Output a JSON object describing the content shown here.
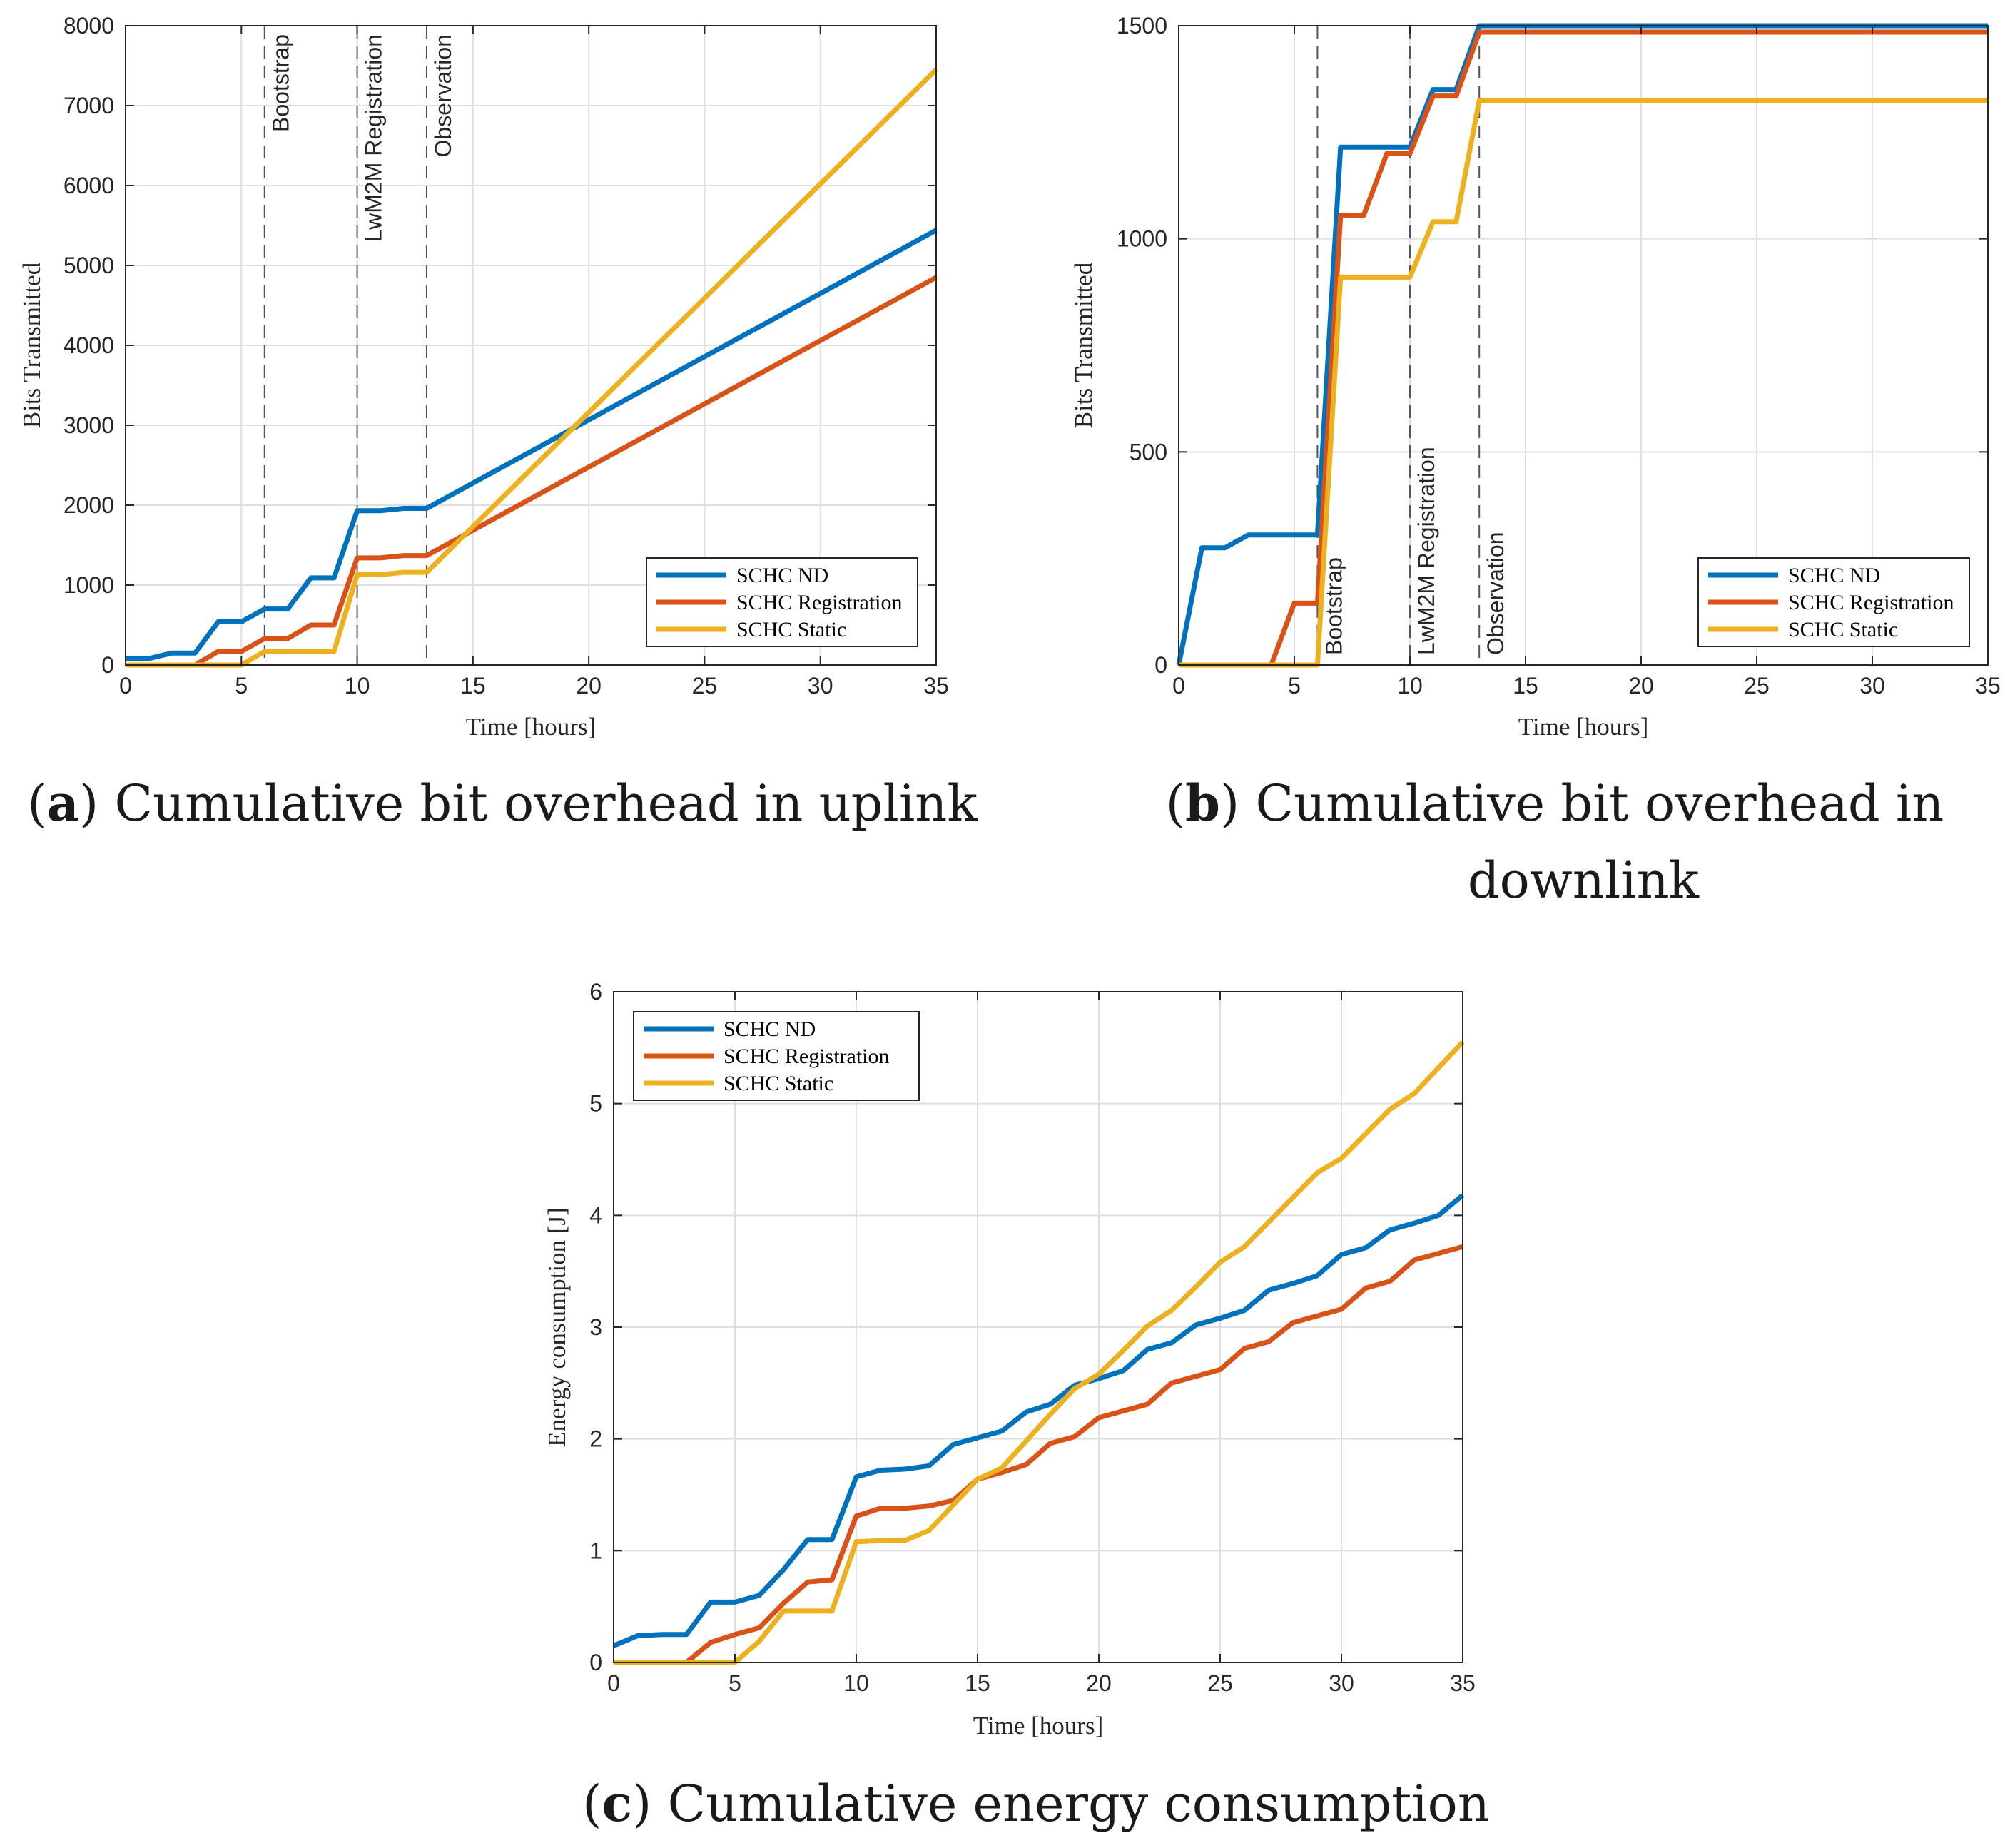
{
  "chart_data": [
    {
      "type": "line",
      "id": "a",
      "title": "",
      "caption": {
        "letter": "a",
        "text": "Cumulative bit overhead in uplink"
      },
      "xlabel": "Time [hours]",
      "ylabel": "Bits Transmitted",
      "xlim": [
        0,
        35
      ],
      "ylim": [
        0,
        8000
      ],
      "xticks": [
        0,
        5,
        10,
        15,
        20,
        25,
        30,
        35
      ],
      "yticks": [
        0,
        1000,
        2000,
        3000,
        4000,
        5000,
        6000,
        7000,
        8000
      ],
      "grid": true,
      "legend_position": "bottom-right",
      "phases": [
        {
          "x": 6,
          "label": "Bootstrap"
        },
        {
          "x": 10,
          "label": "LwM2M Registration"
        },
        {
          "x": 13,
          "label": "Observation"
        }
      ],
      "series": [
        {
          "name": "SCHC ND",
          "color": "#0072BD",
          "x": [
            0,
            1,
            2,
            3,
            4,
            5,
            6,
            7,
            8,
            9,
            10,
            11,
            12,
            13,
            35
          ],
          "y": [
            80,
            80,
            150,
            150,
            540,
            540,
            700,
            700,
            1090,
            1090,
            1930,
            1930,
            1960,
            1960,
            5440
          ]
        },
        {
          "name": "SCHC Registration",
          "color": "#D95319",
          "x": [
            0,
            3,
            4,
            5,
            6,
            7,
            8,
            9,
            10,
            11,
            12,
            13,
            35
          ],
          "y": [
            0,
            0,
            170,
            170,
            330,
            330,
            500,
            500,
            1340,
            1340,
            1370,
            1370,
            4850
          ]
        },
        {
          "name": "SCHC Static",
          "color": "#EDB120",
          "x": [
            0,
            5,
            6,
            7,
            8,
            9,
            10,
            11,
            12,
            13,
            35
          ],
          "y": [
            0,
            0,
            170,
            170,
            170,
            170,
            1130,
            1130,
            1160,
            1160,
            7450
          ]
        }
      ]
    },
    {
      "type": "line",
      "id": "b",
      "title": "",
      "caption": {
        "letter": "b",
        "text": "Cumulative bit overhead in",
        "text2": "downlink"
      },
      "xlabel": "Time [hours]",
      "ylabel": "Bits Transmitted",
      "xlim": [
        0,
        35
      ],
      "ylim": [
        0,
        1500
      ],
      "xticks": [
        0,
        5,
        10,
        15,
        20,
        25,
        30,
        35
      ],
      "yticks": [
        0,
        500,
        1000,
        1500
      ],
      "grid": true,
      "legend_position": "bottom-right",
      "phases": [
        {
          "x": 6,
          "label": "Bootstrap"
        },
        {
          "x": 10,
          "label": "LwM2M Registration"
        },
        {
          "x": 13,
          "label": "Observation"
        }
      ],
      "series": [
        {
          "name": "SCHC ND",
          "color": "#0072BD",
          "x": [
            0,
            1,
            2,
            3,
            6,
            7,
            10,
            11,
            12,
            13,
            35
          ],
          "y": [
            0,
            275,
            275,
            305,
            305,
            1215,
            1215,
            1350,
            1350,
            1500,
            1500
          ]
        },
        {
          "name": "SCHC Registration",
          "color": "#D95319",
          "x": [
            0,
            4,
            5,
            6,
            7,
            8,
            9,
            10,
            11,
            12,
            13,
            35
          ],
          "y": [
            0,
            0,
            145,
            145,
            1055,
            1055,
            1200,
            1200,
            1335,
            1335,
            1485,
            1485
          ]
        },
        {
          "name": "SCHC Static",
          "color": "#EDB120",
          "x": [
            0,
            6,
            7,
            10,
            11,
            12,
            13,
            35
          ],
          "y": [
            0,
            0,
            910,
            910,
            1040,
            1040,
            1325,
            1325
          ]
        }
      ]
    },
    {
      "type": "line",
      "id": "c",
      "title": "",
      "caption": {
        "letter": "c",
        "text": "Cumulative energy consumption"
      },
      "xlabel": "Time [hours]",
      "ylabel": "Energy consumption [J]",
      "xlim": [
        0,
        35
      ],
      "ylim": [
        0,
        6
      ],
      "xticks": [
        0,
        5,
        10,
        15,
        20,
        25,
        30,
        35
      ],
      "yticks": [
        0,
        1,
        2,
        3,
        4,
        5,
        6
      ],
      "grid": true,
      "legend_position": "top-left",
      "phases": [],
      "series": [
        {
          "name": "SCHC ND",
          "color": "#0072BD",
          "x": [
            0,
            1,
            2,
            3,
            4,
            5,
            6,
            7,
            8,
            9,
            10,
            11,
            12,
            13,
            14,
            15,
            16,
            17,
            18,
            19,
            20,
            21,
            22,
            23,
            24,
            25,
            26,
            27,
            28,
            29,
            30,
            31,
            32,
            33,
            34,
            35
          ],
          "y": [
            0.15,
            0.24,
            0.25,
            0.25,
            0.54,
            0.54,
            0.6,
            0.83,
            1.1,
            1.1,
            1.66,
            1.72,
            1.73,
            1.76,
            1.95,
            2.01,
            2.07,
            2.24,
            2.31,
            2.48,
            2.54,
            2.61,
            2.8,
            2.86,
            3.02,
            3.08,
            3.15,
            3.33,
            3.39,
            3.46,
            3.65,
            3.71,
            3.87,
            3.93,
            4.0,
            4.18
          ]
        },
        {
          "name": "SCHC Registration",
          "color": "#D95319",
          "x": [
            0,
            1,
            2,
            3,
            4,
            5,
            6,
            7,
            8,
            9,
            10,
            11,
            12,
            13,
            14,
            15,
            16,
            17,
            18,
            19,
            20,
            21,
            22,
            23,
            24,
            25,
            26,
            27,
            28,
            29,
            30,
            31,
            32,
            33,
            34,
            35
          ],
          "y": [
            0,
            0,
            0,
            0,
            0.18,
            0.25,
            0.31,
            0.53,
            0.72,
            0.74,
            1.31,
            1.38,
            1.38,
            1.4,
            1.45,
            1.64,
            1.7,
            1.77,
            1.96,
            2.02,
            2.19,
            2.25,
            2.31,
            2.5,
            2.56,
            2.62,
            2.81,
            2.87,
            3.04,
            3.1,
            3.16,
            3.35,
            3.41,
            3.6,
            3.66,
            3.72
          ]
        },
        {
          "name": "SCHC Static",
          "color": "#EDB120",
          "x": [
            0,
            1,
            2,
            3,
            4,
            5,
            6,
            7,
            8,
            9,
            10,
            11,
            12,
            13,
            14,
            15,
            16,
            17,
            18,
            19,
            20,
            21,
            22,
            23,
            24,
            25,
            26,
            27,
            28,
            29,
            30,
            31,
            32,
            33,
            34,
            35
          ],
          "y": [
            0,
            0,
            0,
            0,
            0,
            0,
            0.19,
            0.46,
            0.46,
            0.46,
            1.08,
            1.09,
            1.09,
            1.18,
            1.41,
            1.64,
            1.74,
            1.98,
            2.22,
            2.45,
            2.58,
            2.79,
            3.01,
            3.15,
            3.36,
            3.58,
            3.72,
            3.94,
            4.16,
            4.38,
            4.51,
            4.73,
            4.95,
            5.09,
            5.32,
            5.55
          ]
        }
      ]
    }
  ]
}
